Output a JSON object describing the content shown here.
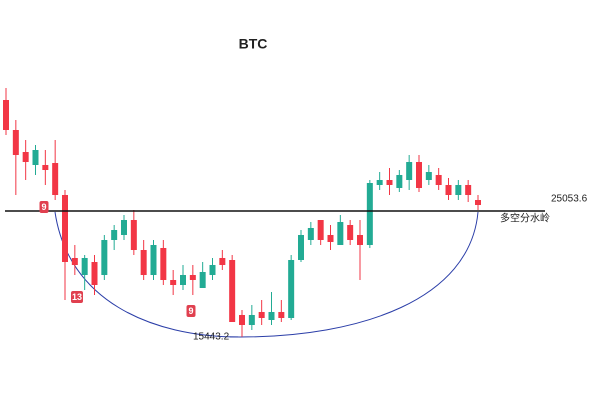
{
  "chart_data": {
    "type": "candlestick",
    "title": "BTC",
    "ylim": [
      10630,
      41150
    ],
    "up_color": "#22ab94",
    "down_color": "#f23645",
    "open": [
      33520,
      31231,
      29552,
      28561,
      28561,
      28713,
      26272,
      21465,
      20168,
      21159,
      20168,
      22838,
      23220,
      24364,
      22075,
      20168,
      22228,
      19786,
      19405,
      20168,
      19176,
      20168,
      21465,
      21312,
      17116,
      16353,
      17344,
      16734,
      17344,
      16887,
      21312,
      22838,
      24364,
      23220,
      22457,
      23983,
      23220,
      22457,
      27035,
      27416,
      26806,
      27416,
      28789,
      27416,
      27798,
      27035,
      26272,
      27035,
      25890
    ],
    "high": [
      34436,
      31994,
      30468,
      30087,
      29705,
      30468,
      26653,
      22457,
      21694,
      21694,
      23220,
      23983,
      24746,
      25127,
      22838,
      22838,
      22838,
      20549,
      20931,
      20931,
      21159,
      21465,
      22075,
      21694,
      17497,
      17879,
      18260,
      18870,
      18260,
      21694,
      23601,
      24211,
      24364,
      23983,
      24746,
      24364,
      24364,
      27416,
      28026,
      28332,
      28179,
      29324,
      29324,
      28561,
      28332,
      27569,
      27416,
      27416,
      26272
    ],
    "low": [
      30850,
      26272,
      27416,
      27798,
      27035,
      25890,
      18260,
      20168,
      19023,
      18642,
      19786,
      22075,
      22838,
      21694,
      19786,
      19786,
      19405,
      18642,
      19023,
      18642,
      19176,
      19786,
      20549,
      16581,
      15443.2,
      15971,
      16353,
      16353,
      16581,
      16734,
      21159,
      22457,
      22457,
      22075,
      22457,
      22457,
      19786,
      22228,
      26653,
      26272,
      26500,
      26653,
      26500,
      27035,
      26653,
      25890,
      25890,
      25737,
      25127
    ],
    "close": [
      31231,
      29324,
      28789,
      29705,
      28179,
      26272,
      21159,
      20931,
      21465,
      19405,
      22838,
      23601,
      24364,
      22075,
      20168,
      22457,
      19786,
      19405,
      20168,
      19786,
      20396,
      20931,
      20931,
      16581,
      16353,
      17116,
      16887,
      17344,
      16887,
      21312,
      23220,
      23754,
      22838,
      22685,
      24211,
      22838,
      22457,
      27187,
      27416,
      27035,
      27798,
      28789,
      26806,
      28026,
      27035,
      26272,
      27035,
      26272,
      25509
    ],
    "reference_line": {
      "value": 25053.6,
      "label": "多空分水岭"
    },
    "low_label": 15443.2,
    "td_markers": [
      "9",
      "13",
      "9"
    ]
  }
}
